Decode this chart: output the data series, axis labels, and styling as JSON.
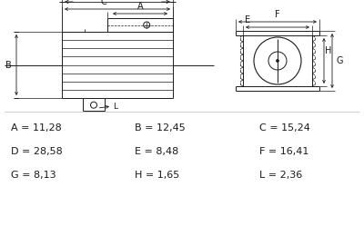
{
  "bg_color": "#ffffff",
  "line_color": "#1a1a1a",
  "table_rows": [
    [
      [
        "A",
        "11,28"
      ],
      [
        "B",
        "12,45"
      ],
      [
        "C",
        "15,24"
      ]
    ],
    [
      [
        "D",
        "28,58"
      ],
      [
        "E",
        "8,48"
      ],
      [
        "F",
        "16,41"
      ]
    ],
    [
      [
        "G",
        "8,13"
      ],
      [
        "H",
        "1,65"
      ],
      [
        "L",
        "2,36"
      ]
    ]
  ]
}
